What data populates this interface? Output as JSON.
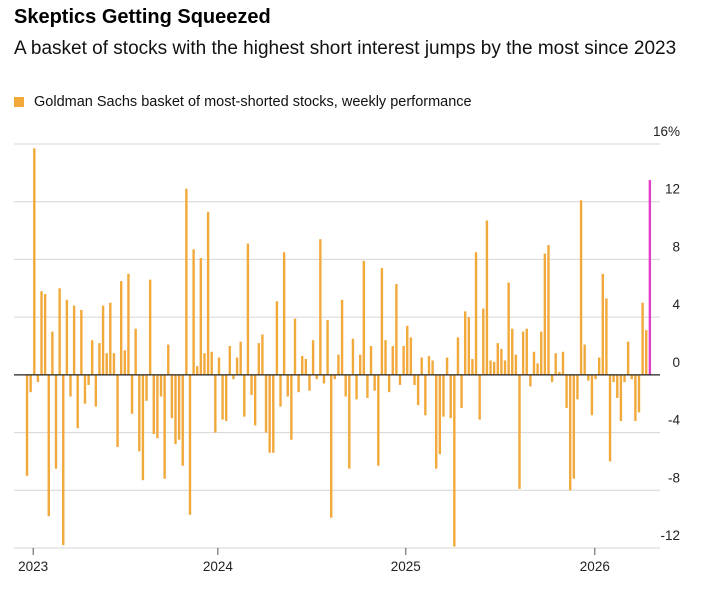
{
  "chart_data": {
    "type": "bar",
    "title": "Skeptics Getting Squeezed",
    "subtitle": "A basket of stocks with the highest short interest jumps by the most since 2023",
    "legend": "Goldman Sachs basket of most-shorted stocks, weekly performance",
    "color": "#f2a93b",
    "last_color": "#e23fc9",
    "grid": true,
    "values": [
      -7.0,
      -1.2,
      15.7,
      -0.5,
      5.8,
      5.6,
      -9.8,
      3.0,
      -6.5,
      6.0,
      -11.8,
      5.2,
      -1.5,
      4.8,
      -3.7,
      4.5,
      -2.0,
      -0.7,
      2.4,
      -2.2,
      2.2,
      4.8,
      1.5,
      5.0,
      1.5,
      -5.0,
      6.5,
      1.7,
      7.0,
      -2.7,
      3.2,
      -5.3,
      -7.3,
      -1.8,
      6.6,
      -4.1,
      -4.4,
      -1.5,
      -7.2,
      2.1,
      -3.0,
      -4.8,
      -4.5,
      -6.3,
      12.9,
      -9.7,
      8.7,
      0.6,
      8.1,
      1.5,
      11.3,
      1.6,
      -4.0,
      1.2,
      -3.1,
      -3.2,
      2.0,
      -0.3,
      1.2,
      2.3,
      -2.9,
      9.1,
      -1.4,
      -3.5,
      2.2,
      2.8,
      -4.0,
      -5.4,
      -5.4,
      5.1,
      -2.2,
      8.5,
      -1.5,
      -4.5,
      3.9,
      -1.2,
      1.3,
      1.1,
      -1.1,
      2.4,
      -0.3,
      9.4,
      -0.6,
      3.8,
      -9.9,
      -0.3,
      1.4,
      5.2,
      -1.5,
      -6.5,
      2.5,
      -1.7,
      1.4,
      7.9,
      -1.6,
      2.0,
      -1.1,
      -6.3,
      7.4,
      2.4,
      -1.2,
      2.0,
      6.3,
      -0.7,
      2.0,
      3.4,
      2.6,
      -0.7,
      -2.1,
      1.2,
      -2.8,
      1.3,
      1.0,
      -6.5,
      -5.5,
      -2.9,
      1.2,
      -3.0,
      -11.9,
      2.6,
      -2.3,
      4.4,
      4.0,
      1.1,
      8.5,
      -3.1,
      4.6,
      10.7,
      1.0,
      0.9,
      2.2,
      1.8,
      1.0,
      6.4,
      3.2,
      1.4,
      -7.9,
      3.0,
      3.2,
      -0.8,
      1.6,
      0.8,
      3.0,
      8.4,
      9.0,
      -0.5,
      1.5,
      0.2,
      1.6,
      -2.3,
      -8.0,
      -7.2,
      -1.7,
      12.1,
      2.1,
      -0.4,
      -2.8,
      -0.3,
      1.2,
      7.0,
      5.3,
      -6.0,
      -0.5,
      -1.6,
      -3.2,
      -0.5,
      2.3,
      -0.3,
      -3.2,
      -2.6,
      5.0,
      3.1,
      13.5
    ],
    "xlim": [
      -3.6,
      174.8
    ],
    "xticks": [
      {
        "value": 1.7,
        "label": "2023"
      },
      {
        "value": 52.7,
        "label": "2024"
      },
      {
        "value": 104.6,
        "label": "2025"
      },
      {
        "value": 156.8,
        "label": "2026"
      }
    ],
    "ylim": [
      -12,
      16
    ],
    "yticks": [
      {
        "value": 16,
        "label": "16%"
      },
      12,
      8,
      4,
      0,
      -4,
      -8,
      -12
    ]
  }
}
